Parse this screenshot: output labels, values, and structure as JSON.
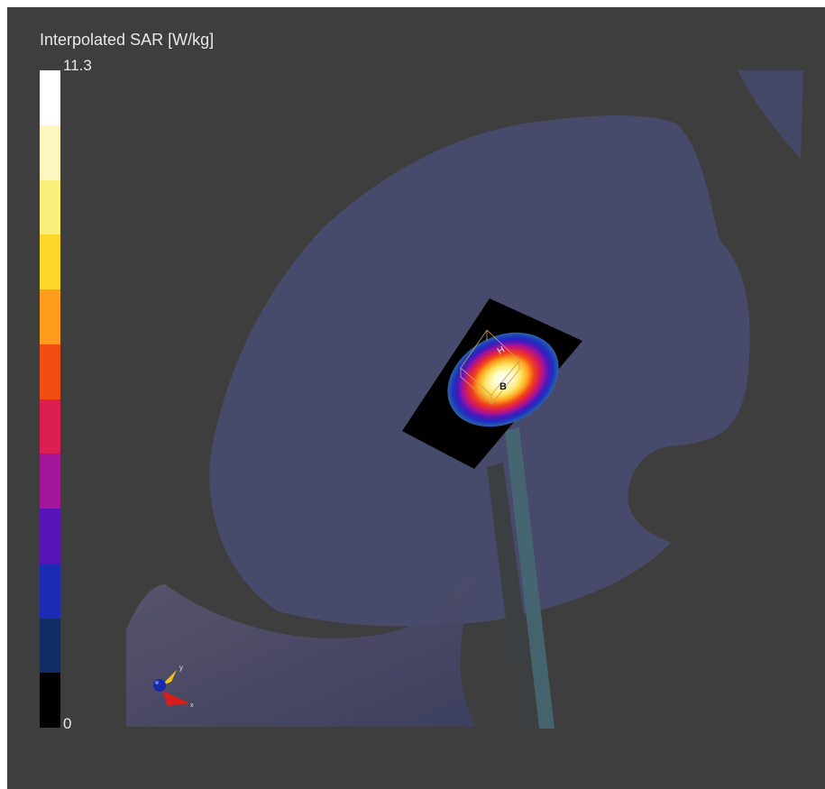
{
  "legend": {
    "title": "Interpolated SAR [W/kg]",
    "max_label": "11.3",
    "min_label": "0",
    "colors": [
      "#ffffff",
      "#fdf7bf",
      "#fbef7c",
      "#fdd62a",
      "#ff9b1d",
      "#f24e11",
      "#dc1e52",
      "#a3169a",
      "#5914b8",
      "#1d2bb4",
      "#102e64",
      "#000000"
    ]
  },
  "scene": {
    "probe_labels": {
      "h": "H",
      "b": "B"
    },
    "axis_labels": {
      "y": "y",
      "x": "x"
    }
  }
}
